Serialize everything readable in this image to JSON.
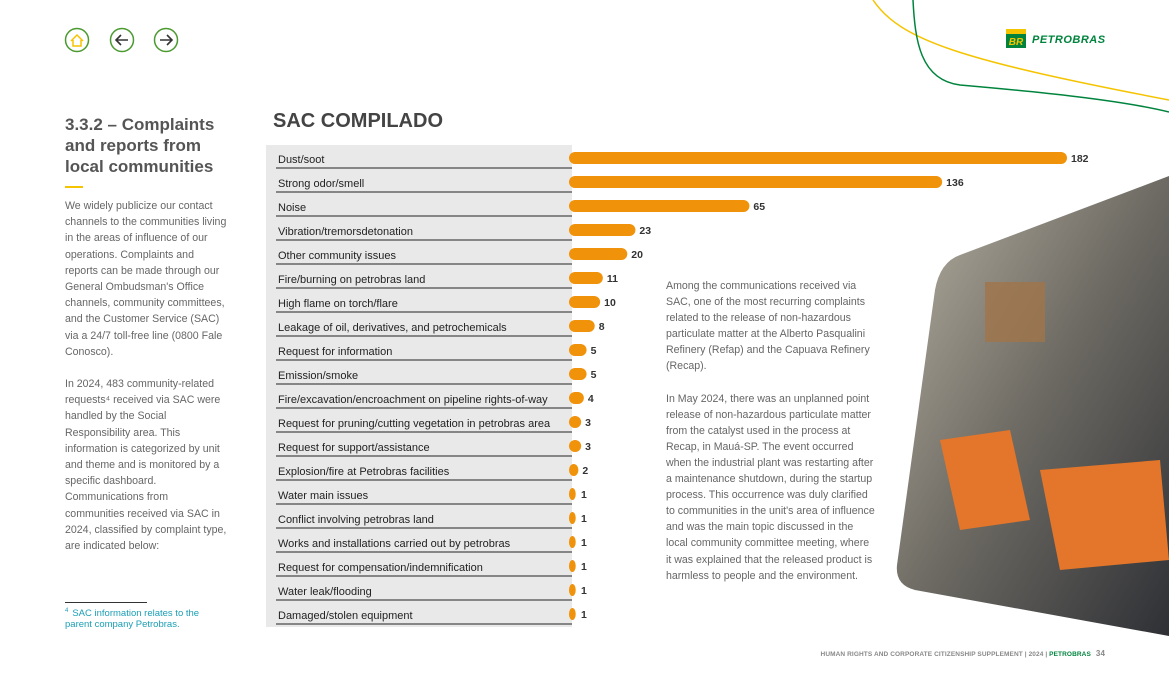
{
  "logo": {
    "mark": "BR",
    "text": "PETROBRAS"
  },
  "section": {
    "title": "3.3.2 – Complaints and reports from local communities",
    "paragraphs": [
      "We widely publicize our contact channels to the communities living in the areas of influence of our operations. Complaints and reports can be made through our General Ombudsman's Office channels, community committees, and the Customer Service (SAC) via a 24/7 toll-free line (0800 Fale Conosco).",
      "In 2024, 483 community-related requests⁴ received via SAC were handled by the Social Responsibility area. This information is categorized by unit and theme and is monitored by a specific dashboard. Communications from communities received via SAC in 2024, classified by complaint type, are indicated below:"
    ]
  },
  "footnote": {
    "marker": "4",
    "text": "SAC information relates to the parent company Petrobras."
  },
  "chart_data": {
    "type": "bar",
    "orientation": "horizontal",
    "title": "SAC COMPILADO",
    "color": "#f0920a",
    "categories": [
      "Dust/soot",
      "Strong odor/smell",
      "Noise",
      "Vibration/tremorsdetonation",
      "Other community issues",
      "Fire/burning on petrobras land",
      "High flame on torch/flare",
      "Leakage of oil, derivatives, and petrochemicals",
      "Request for information",
      "Emission/smoke",
      "Fire/excavation/encroachment on pipeline rights-of-way",
      "Request for pruning/cutting vegetation in petrobras area",
      "Request for support/assistance",
      "Explosion/fire at Petrobras facilities",
      "Water main issues",
      "Conflict involving petrobras land",
      "Works and installations carried out by petrobras",
      "Request for compensation/indemnification",
      "Water leak/flooding",
      "Damaged/stolen equipment"
    ],
    "values": [
      182,
      136,
      65,
      23,
      20,
      11,
      10,
      8,
      5,
      5,
      4,
      3,
      3,
      2,
      1,
      1,
      1,
      1,
      1,
      1
    ]
  },
  "body_text": {
    "paragraphs": [
      "Among the communications received via SAC, one of the most recurring complaints related to the release of non-hazardous particulate matter at the Alberto Pasqualini Refinery (Refap) and the Capuava Refinery (Recap).",
      "In May 2024, there was an unplanned point release of non-hazardous particulate matter from the catalyst used in the process at Recap, in Mauá-SP. The event occurred when the industrial plant was restarting after a maintenance shutdown, during the startup process. This occurrence was duly clarified to communities in the unit's area of influence and was the main topic discussed in the local community committee meeting, where it was explained that the released product is harmless to people and the environment."
    ]
  },
  "footer": {
    "text": "HUMAN RIGHTS AND CORPORATE CITIZENSHIP SUPPLEMENT | 2024 |",
    "brand": "PETROBRAS",
    "page": "34"
  }
}
